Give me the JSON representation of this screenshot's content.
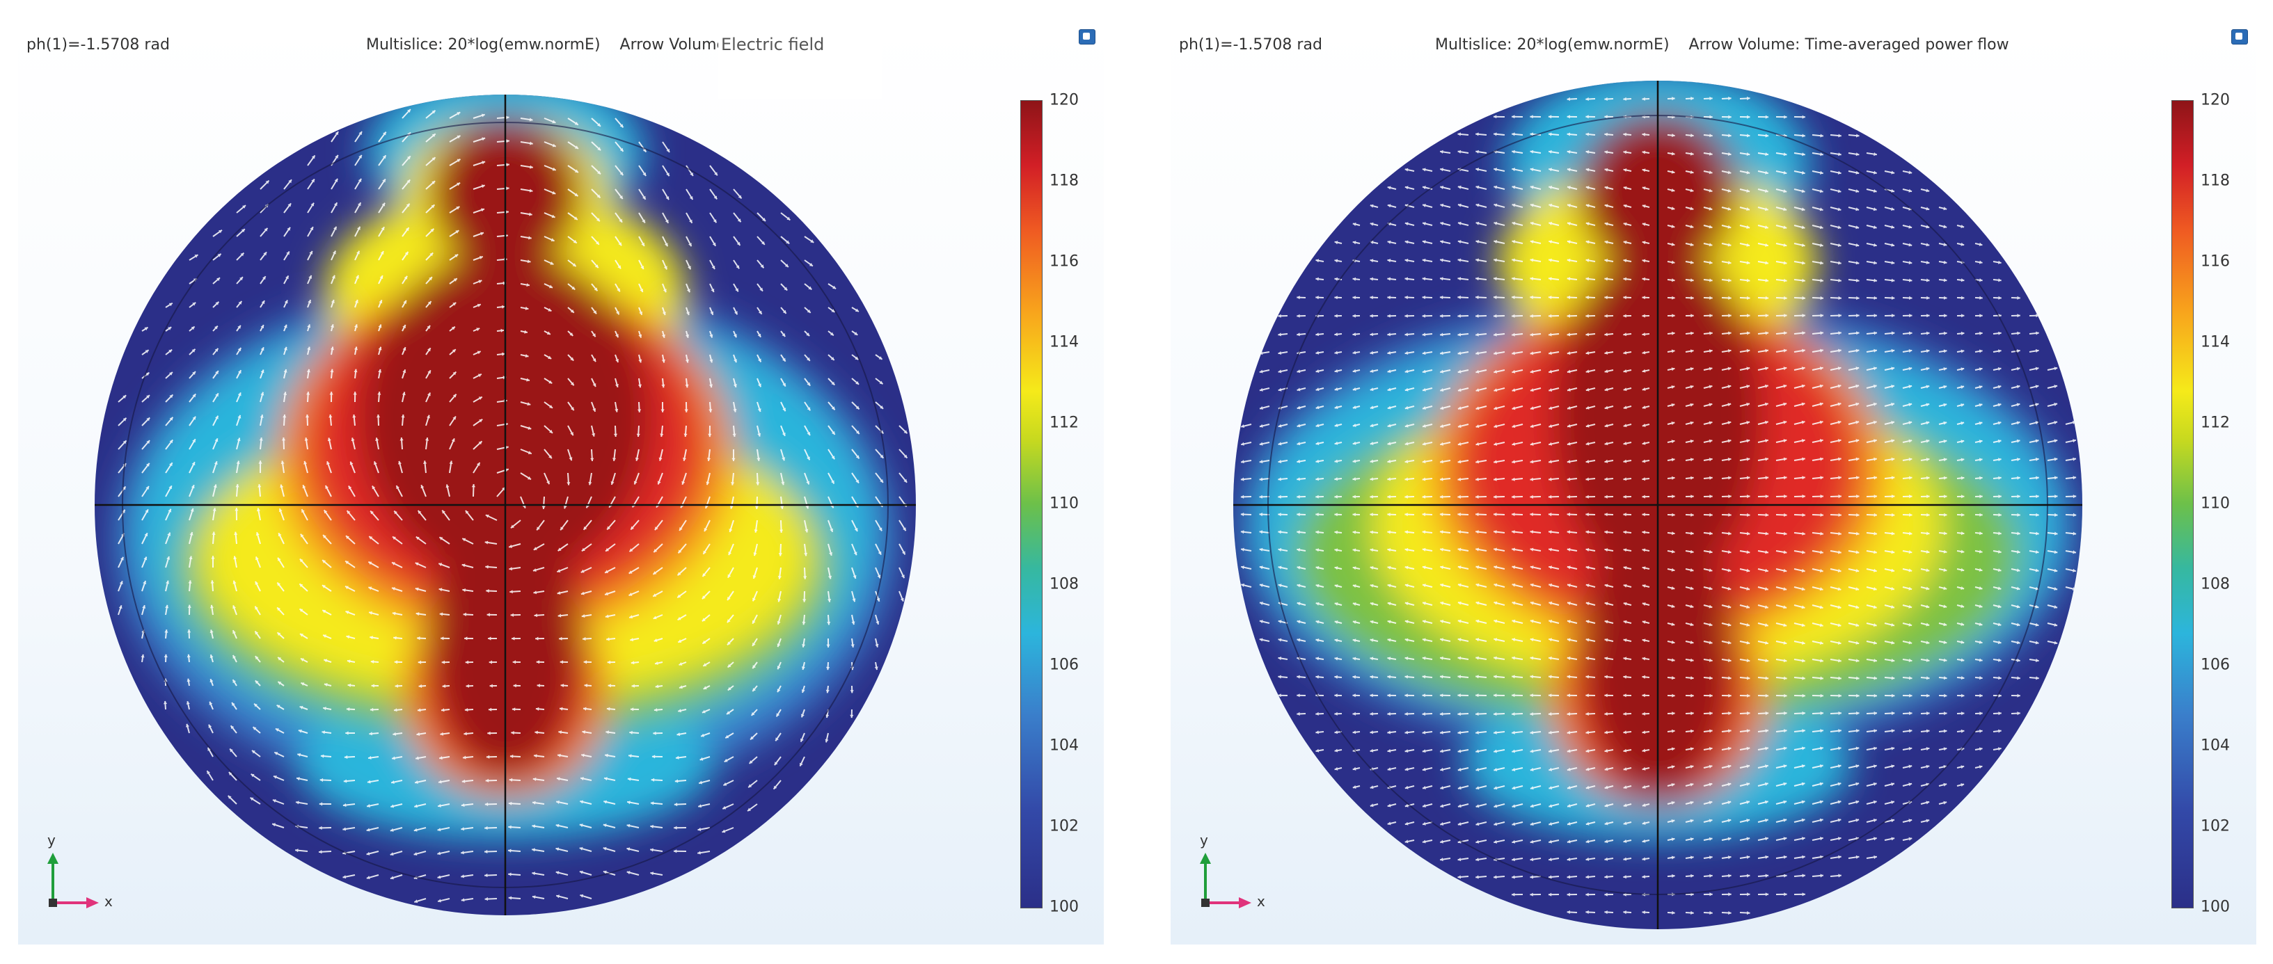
{
  "left_panel": {
    "phase_label": "ph(1)=-1.5708 rad",
    "multislice_label": "Multislice: 20*log(emw.normE)",
    "arrow_label": "Arrow Volume:",
    "arrow_name": "Electric field",
    "colorbar_ticks": [
      "120",
      "118",
      "116",
      "114",
      "112",
      "110",
      "108",
      "106",
      "104",
      "102",
      "100"
    ],
    "axis_x": "x",
    "axis_y": "y"
  },
  "right_panel": {
    "phase_label": "ph(1)=-1.5708 rad",
    "multislice_label": "Multislice: 20*log(emw.normE)",
    "arrow_label": "Arrow Volume: Time-averaged power flow",
    "colorbar_ticks": [
      "120",
      "118",
      "116",
      "114",
      "112",
      "110",
      "108",
      "106",
      "104",
      "102",
      "100"
    ],
    "axis_x": "x",
    "axis_y": "y"
  },
  "colors": {
    "dark_blue": "#2b2f88",
    "deep_red": "#9a1518",
    "red": "#e02a26",
    "orange": "#f7931d",
    "yellow": "#f5ea1a",
    "green": "#7cc142",
    "cyan": "#2cb5dc",
    "arrow": "#ffffff",
    "x_axis_arrow": "#e0337b",
    "y_axis_arrow": "#1f9e3a"
  }
}
